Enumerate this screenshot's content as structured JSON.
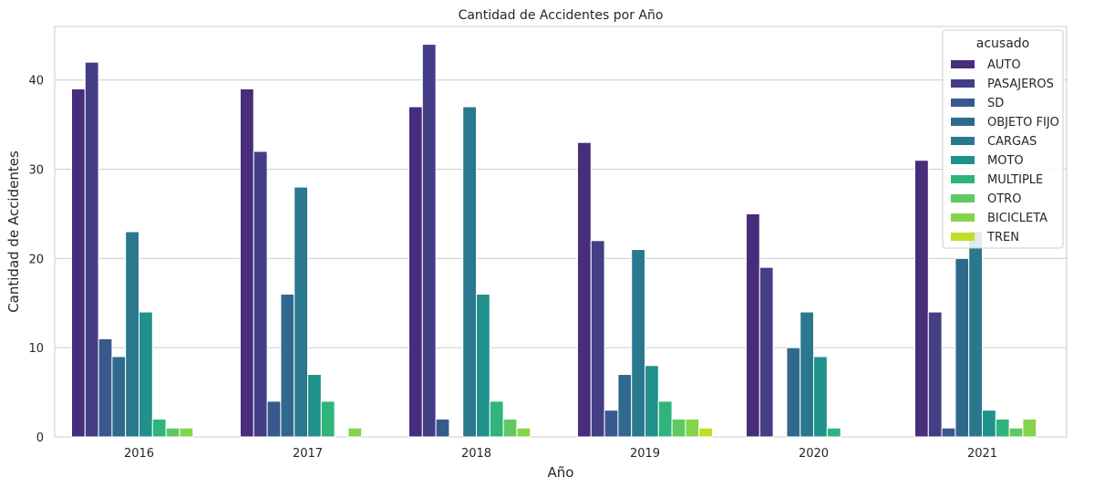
{
  "chart_data": {
    "type": "bar",
    "title": "Cantidad de Accidentes por Año",
    "xlabel": "Año",
    "ylabel": "Cantidad de Accidentes",
    "categories": [
      "2016",
      "2017",
      "2018",
      "2019",
      "2020",
      "2021"
    ],
    "ylim": [
      0,
      46
    ],
    "yticks": [
      0,
      10,
      20,
      30,
      40
    ],
    "grid": "horizontal",
    "legend": {
      "title": "acusado",
      "placement": "top-right"
    },
    "series": [
      {
        "name": "AUTO",
        "color": "#472d7b",
        "values": [
          39,
          39,
          37,
          33,
          25,
          31
        ]
      },
      {
        "name": "PASAJEROS",
        "color": "#433e85",
        "values": [
          42,
          32,
          44,
          22,
          19,
          14
        ]
      },
      {
        "name": "SD",
        "color": "#38598c",
        "values": [
          11,
          4,
          2,
          3,
          null,
          1
        ]
      },
      {
        "name": "OBJETO FIJO",
        "color": "#30698e",
        "values": [
          9,
          16,
          null,
          7,
          10,
          20
        ]
      },
      {
        "name": "CARGAS",
        "color": "#2a788e",
        "values": [
          23,
          28,
          37,
          21,
          14,
          23
        ]
      },
      {
        "name": "MOTO",
        "color": "#21918c",
        "values": [
          14,
          7,
          16,
          8,
          9,
          3
        ]
      },
      {
        "name": "MULTIPLE",
        "color": "#2fb47c",
        "values": [
          2,
          4,
          4,
          4,
          1,
          2
        ]
      },
      {
        "name": "OTRO",
        "color": "#5ec962",
        "values": [
          1,
          null,
          2,
          2,
          null,
          1
        ]
      },
      {
        "name": "BICICLETA",
        "color": "#84d44b",
        "values": [
          1,
          1,
          1,
          2,
          null,
          2
        ]
      },
      {
        "name": "TREN",
        "color": "#bddf26",
        "values": [
          null,
          null,
          null,
          1,
          null,
          null
        ]
      }
    ]
  }
}
